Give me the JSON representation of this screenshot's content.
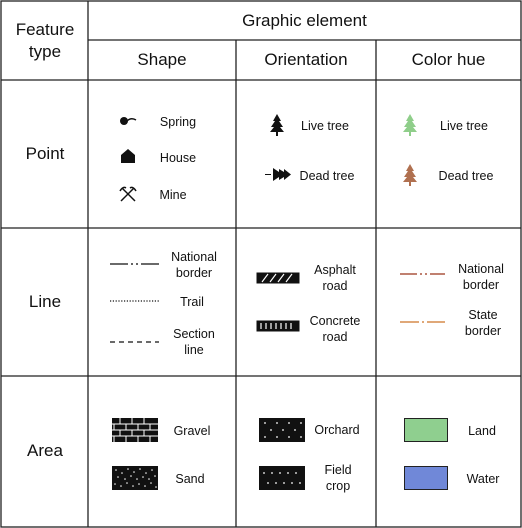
{
  "header": {
    "feature_type": "Feature\ntype",
    "graphic_element": "Graphic element",
    "columns": [
      "Shape",
      "Orientation",
      "Color hue"
    ]
  },
  "rows": {
    "point": {
      "label": "Point",
      "shape": [
        "Spring",
        "House",
        "Mine"
      ],
      "orientation": [
        "Live tree",
        "Dead tree"
      ],
      "color": [
        "Live tree",
        "Dead tree"
      ]
    },
    "line": {
      "label": "Line",
      "shape": [
        "National\nborder",
        "Trail",
        "Section\nline"
      ],
      "orientation": [
        "Asphalt\nroad",
        "Concrete\nroad"
      ],
      "color": [
        "National\nborder",
        "State\nborder"
      ]
    },
    "area": {
      "label": "Area",
      "shape": [
        "Gravel",
        "Sand"
      ],
      "orientation": [
        "Orchard",
        "Field\ncrop"
      ],
      "color": [
        "Land",
        "Water"
      ]
    }
  },
  "colors": {
    "line": "#111111",
    "live_tree_green": "#8fce8a",
    "dead_tree_brown": "#b07050",
    "national_border": "#c08070",
    "state_border": "#e0a878",
    "land": "#8fcf8f",
    "water": "#7088d8"
  },
  "icons": {
    "spring": "spring-icon",
    "house": "house-icon",
    "mine": "mine-icon",
    "live_tree": "tree-icon",
    "dead_tree": "fallen-tree-icon"
  }
}
